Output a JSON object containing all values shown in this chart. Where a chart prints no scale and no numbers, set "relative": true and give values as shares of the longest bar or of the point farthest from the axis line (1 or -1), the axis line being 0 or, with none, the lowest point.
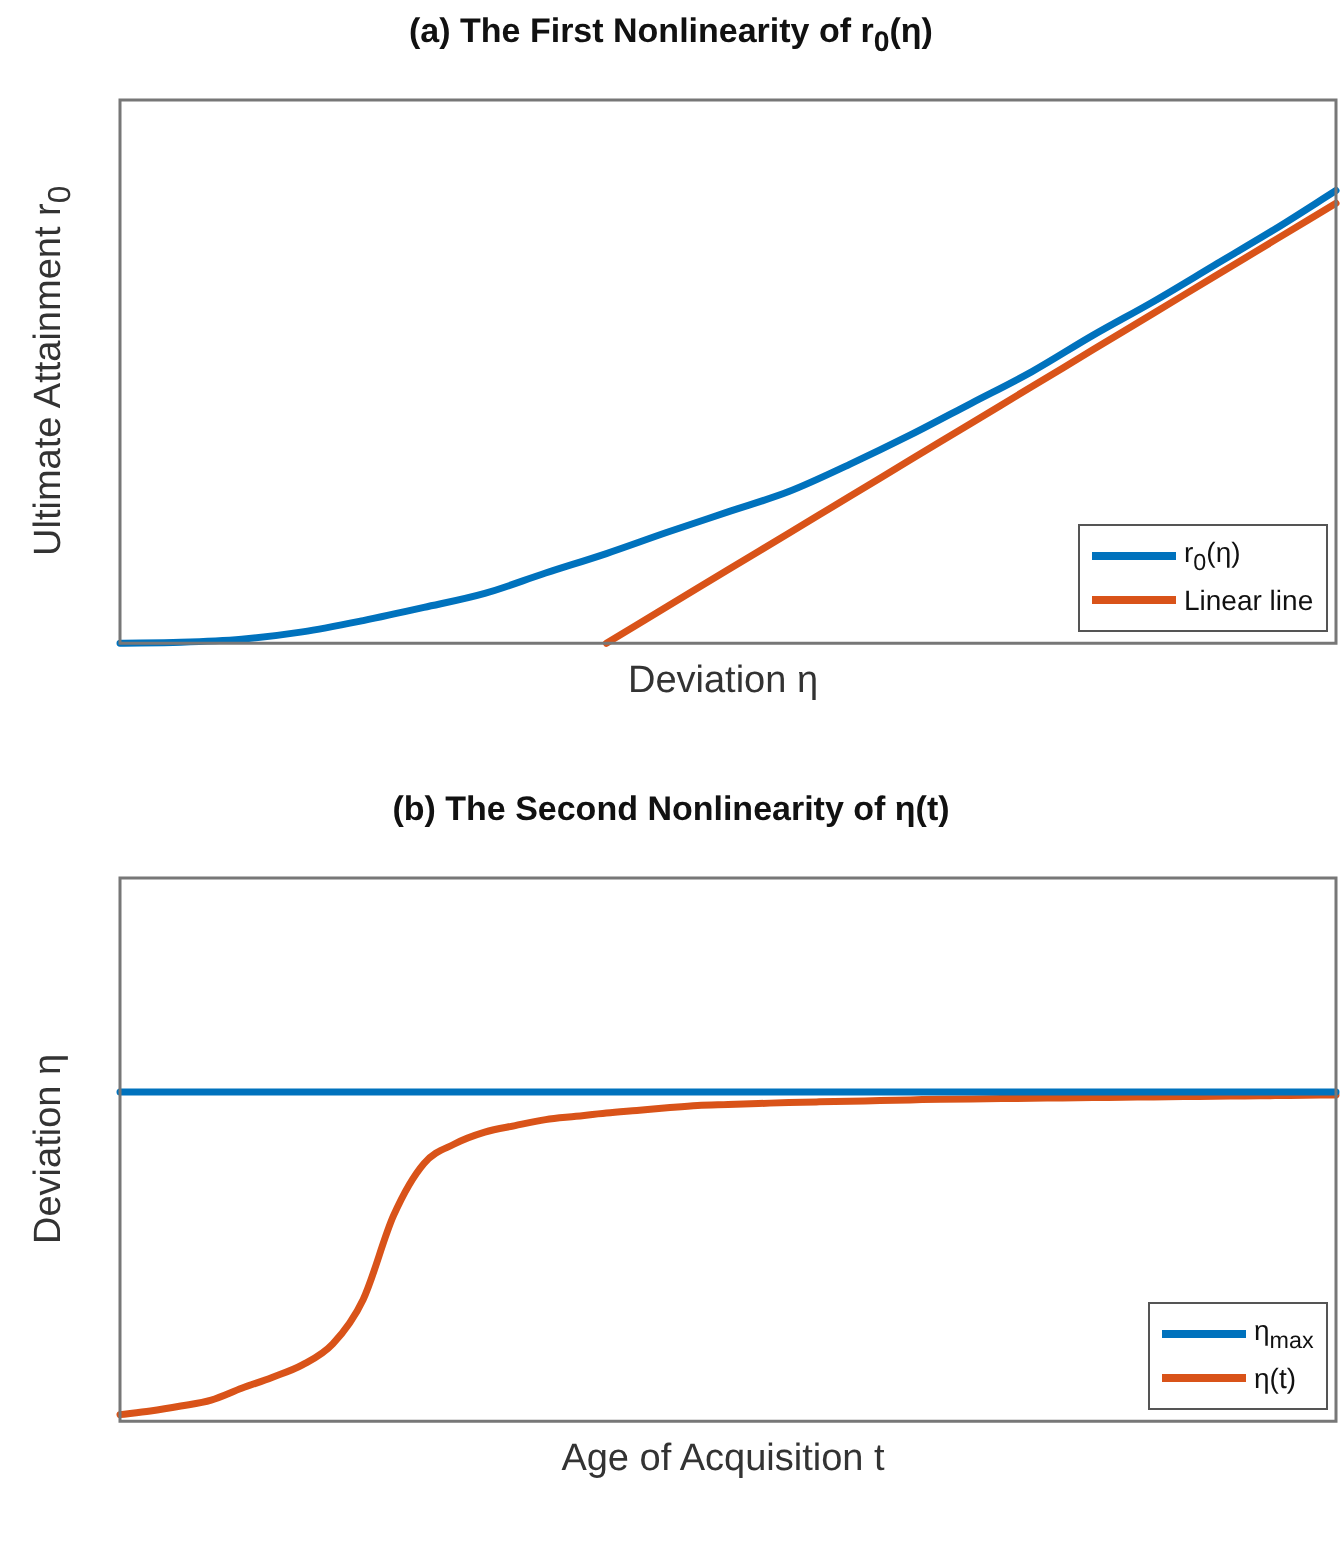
{
  "chart_data": [
    {
      "type": "line",
      "title": "(a) The First Nonlinearity of r$_{0}$(η)",
      "xlabel": "Deviation η",
      "ylabel": "Ultimate Attainment r$_{0}$",
      "relative": true,
      "grid": false,
      "legend": "bottom right",
      "marker": "none",
      "categories": [
        null,
        null,
        null,
        null,
        null,
        null,
        null,
        null,
        null,
        null,
        null,
        null,
        null,
        null,
        null,
        null,
        null,
        null,
        null,
        null,
        null
      ],
      "series": [
        {
          "name": "r$_{0}$(η)",
          "color": "#0072bd",
          "values": [
            0,
            0.002,
            0.009,
            0.025,
            0.05,
            0.079,
            0.11,
            0.155,
            0.198,
            0.245,
            0.29,
            0.335,
            0.395,
            0.46,
            0.53,
            0.6,
            0.68,
            0.755,
            0.835,
            0.915,
            1
          ]
        },
        {
          "name": "Linear line",
          "color": "#d95319",
          "values": [
            null,
            null,
            null,
            null,
            null,
            null,
            null,
            null,
            0,
            0.081,
            0.162,
            0.243,
            0.324,
            0.405,
            0.486,
            0.567,
            0.648,
            0.729,
            0.81,
            0.891,
            0.972
          ]
        }
      ]
    },
    {
      "type": "line",
      "title": "(b) The Second Nonlinearity of η(t)",
      "xlabel": "Age of Acquisition t",
      "ylabel": "Deviation η",
      "relative": true,
      "grid": false,
      "legend": "bottom right",
      "marker": "none",
      "categories": [
        null,
        null,
        null,
        null,
        null,
        null,
        null,
        null,
        null,
        null,
        null,
        null,
        null,
        null,
        null,
        null,
        null,
        null,
        null,
        null,
        null,
        null,
        null,
        null,
        null,
        null,
        null,
        null,
        null,
        null,
        null,
        null,
        null,
        null,
        null,
        null,
        null,
        null,
        null,
        null,
        null
      ],
      "series": [
        {
          "name": "η$_{max}$",
          "color": "#0072bd",
          "values": [
            1,
            1,
            1,
            1,
            1,
            1,
            1,
            1,
            1,
            1,
            1,
            1,
            1,
            1,
            1,
            1,
            1,
            1,
            1,
            1,
            1,
            1,
            1,
            1,
            1,
            1,
            1,
            1,
            1,
            1,
            1,
            1,
            1,
            1,
            1,
            1,
            1,
            1,
            1,
            1,
            1
          ]
        },
        {
          "name": "η(t)",
          "color": "#d95319",
          "values": [
            0.02,
            0.031,
            0.046,
            0.064,
            0.1,
            0.133,
            0.171,
            0.235,
            0.37,
            0.625,
            0.783,
            0.842,
            0.878,
            0.898,
            0.916,
            0.926,
            0.936,
            0.944,
            0.952,
            0.959,
            0.962,
            0.965,
            0.968,
            0.97,
            0.972,
            0.974,
            0.976,
            0.978,
            0.979,
            0.98,
            0.981,
            0.982,
            0.983,
            0.984,
            0.985,
            0.986,
            0.987,
            0.988,
            0.989,
            0.99,
            0.991
          ]
        }
      ]
    }
  ]
}
